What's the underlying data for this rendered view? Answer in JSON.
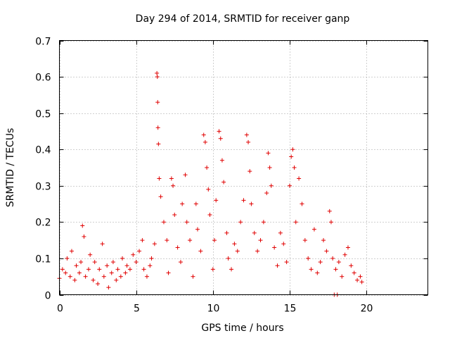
{
  "chart_data": {
    "type": "scatter",
    "title": "Day 294 of 2014, SRMTID for receiver ganp",
    "xlabel": "GPS time / hours",
    "ylabel": "SRMTID / TECUs",
    "xlim": [
      0,
      24
    ],
    "ylim": [
      0,
      0.7
    ],
    "xticks": [
      0,
      5,
      10,
      15,
      20
    ],
    "yticks": [
      0,
      0.1,
      0.2,
      0.3,
      0.4,
      0.5,
      0.6,
      0.7
    ],
    "grid": true,
    "marker": "+",
    "color": "#e00000",
    "series": [
      {
        "name": "SRMTID",
        "points": [
          [
            0.0,
            0.045
          ],
          [
            0.2,
            0.07
          ],
          [
            0.4,
            0.06
          ],
          [
            0.5,
            0.1
          ],
          [
            0.7,
            0.05
          ],
          [
            0.8,
            0.12
          ],
          [
            1.0,
            0.04
          ],
          [
            1.1,
            0.08
          ],
          [
            1.3,
            0.06
          ],
          [
            1.4,
            0.09
          ],
          [
            1.5,
            0.19
          ],
          [
            1.6,
            0.16
          ],
          [
            1.7,
            0.05
          ],
          [
            1.9,
            0.07
          ],
          [
            2.0,
            0.11
          ],
          [
            2.2,
            0.04
          ],
          [
            2.3,
            0.09
          ],
          [
            2.5,
            0.03
          ],
          [
            2.6,
            0.07
          ],
          [
            2.8,
            0.14
          ],
          [
            2.9,
            0.05
          ],
          [
            3.1,
            0.08
          ],
          [
            3.2,
            0.02
          ],
          [
            3.4,
            0.06
          ],
          [
            3.5,
            0.09
          ],
          [
            3.7,
            0.04
          ],
          [
            3.8,
            0.07
          ],
          [
            4.0,
            0.05
          ],
          [
            4.1,
            0.1
          ],
          [
            4.3,
            0.06
          ],
          [
            4.4,
            0.08
          ],
          [
            4.6,
            0.07
          ],
          [
            4.8,
            0.11
          ],
          [
            5.0,
            0.09
          ],
          [
            5.2,
            0.12
          ],
          [
            5.4,
            0.15
          ],
          [
            5.5,
            0.07
          ],
          [
            5.7,
            0.05
          ],
          [
            5.9,
            0.08
          ],
          [
            6.0,
            0.1
          ],
          [
            6.2,
            0.14
          ],
          [
            6.35,
            0.61
          ],
          [
            6.38,
            0.6
          ],
          [
            6.4,
            0.53
          ],
          [
            6.42,
            0.46
          ],
          [
            6.45,
            0.415
          ],
          [
            6.5,
            0.32
          ],
          [
            6.6,
            0.27
          ],
          [
            6.8,
            0.2
          ],
          [
            7.0,
            0.15
          ],
          [
            7.1,
            0.06
          ],
          [
            7.3,
            0.32
          ],
          [
            7.4,
            0.3
          ],
          [
            7.5,
            0.22
          ],
          [
            7.7,
            0.13
          ],
          [
            7.9,
            0.09
          ],
          [
            8.0,
            0.25
          ],
          [
            8.2,
            0.33
          ],
          [
            8.3,
            0.2
          ],
          [
            8.5,
            0.15
          ],
          [
            8.7,
            0.05
          ],
          [
            8.9,
            0.25
          ],
          [
            9.0,
            0.18
          ],
          [
            9.2,
            0.12
          ],
          [
            9.4,
            0.44
          ],
          [
            9.5,
            0.42
          ],
          [
            9.6,
            0.35
          ],
          [
            9.7,
            0.29
          ],
          [
            9.8,
            0.22
          ],
          [
            10.0,
            0.07
          ],
          [
            10.1,
            0.15
          ],
          [
            10.2,
            0.26
          ],
          [
            10.4,
            0.45
          ],
          [
            10.5,
            0.43
          ],
          [
            10.6,
            0.37
          ],
          [
            10.7,
            0.31
          ],
          [
            10.9,
            0.17
          ],
          [
            11.0,
            0.1
          ],
          [
            11.2,
            0.07
          ],
          [
            11.4,
            0.14
          ],
          [
            11.6,
            0.12
          ],
          [
            11.8,
            0.2
          ],
          [
            12.0,
            0.26
          ],
          [
            12.2,
            0.44
          ],
          [
            12.3,
            0.42
          ],
          [
            12.4,
            0.34
          ],
          [
            12.5,
            0.25
          ],
          [
            12.7,
            0.17
          ],
          [
            12.9,
            0.12
          ],
          [
            13.1,
            0.15
          ],
          [
            13.3,
            0.2
          ],
          [
            13.5,
            0.28
          ],
          [
            13.6,
            0.39
          ],
          [
            13.7,
            0.35
          ],
          [
            13.8,
            0.3
          ],
          [
            14.0,
            0.13
          ],
          [
            14.2,
            0.08
          ],
          [
            14.4,
            0.17
          ],
          [
            14.6,
            0.14
          ],
          [
            14.8,
            0.09
          ],
          [
            15.0,
            0.3
          ],
          [
            15.1,
            0.38
          ],
          [
            15.2,
            0.4
          ],
          [
            15.3,
            0.35
          ],
          [
            15.4,
            0.2
          ],
          [
            15.6,
            0.32
          ],
          [
            15.8,
            0.25
          ],
          [
            16.0,
            0.15
          ],
          [
            16.2,
            0.1
          ],
          [
            16.4,
            0.07
          ],
          [
            16.6,
            0.18
          ],
          [
            16.8,
            0.06
          ],
          [
            17.0,
            0.09
          ],
          [
            17.2,
            0.15
          ],
          [
            17.4,
            0.12
          ],
          [
            17.6,
            0.23
          ],
          [
            17.7,
            0.2
          ],
          [
            17.8,
            0.1
          ],
          [
            17.9,
            0.0
          ],
          [
            18.0,
            0.07
          ],
          [
            18.1,
            0.0
          ],
          [
            18.2,
            0.09
          ],
          [
            18.4,
            0.05
          ],
          [
            18.6,
            0.11
          ],
          [
            18.8,
            0.13
          ],
          [
            19.0,
            0.08
          ],
          [
            19.2,
            0.06
          ],
          [
            19.4,
            0.04
          ],
          [
            19.6,
            0.05
          ],
          [
            19.7,
            0.035
          ]
        ]
      }
    ]
  }
}
